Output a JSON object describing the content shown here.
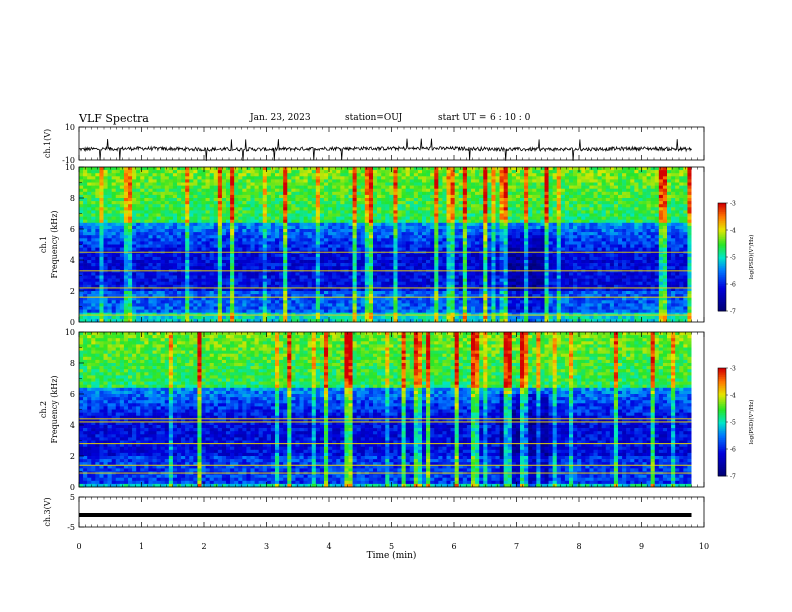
{
  "header": {
    "title": "VLF Spectra",
    "date": "Jan. 23, 2023",
    "station": "station=OUJ",
    "start_prefix": "start UT =",
    "start_time": "6 : 10 : 0"
  },
  "colors": {
    "trace": "#000000",
    "spectrogram_dark": "#00007f",
    "spectrogram_mid": "#00ff7f",
    "spectrogram_high": "#ff0000"
  },
  "chart_data": [
    {
      "type": "line",
      "id": "ch1-waveform",
      "ylabel": "ch.1(V)",
      "ylim": [
        -10,
        10
      ],
      "yticks": [
        -10,
        10
      ],
      "xlim": [
        0,
        10
      ],
      "x": [
        0,
        1,
        2,
        3,
        4,
        5,
        6,
        7,
        8,
        9,
        9.8
      ],
      "y": [
        -3.5,
        -3,
        -3.5,
        -3.5,
        -3,
        -3,
        -3,
        -3.5,
        -3.5,
        -3,
        -3.5
      ]
    },
    {
      "type": "heatmap",
      "id": "ch1-spectrogram",
      "ylabel_line1": "ch.1",
      "ylabel_line2": "Frequency (kHz)",
      "xlim": [
        0,
        10
      ],
      "ylim": [
        0,
        10
      ],
      "yticks": [
        0,
        2,
        4,
        6,
        8,
        10
      ],
      "colorbar": {
        "label": "log(PSD)(V²/Hz)",
        "range": [
          -7,
          -3
        ],
        "ticks": [
          "-7",
          "-6",
          "-5",
          "-4",
          "-3"
        ]
      }
    },
    {
      "type": "heatmap",
      "id": "ch2-spectrogram",
      "ylabel_line1": "ch.2",
      "ylabel_line2": "Frequency (kHz)",
      "xlim": [
        0,
        10
      ],
      "ylim": [
        0,
        10
      ],
      "yticks": [
        0,
        2,
        4,
        6,
        8,
        10
      ],
      "colorbar": {
        "label": "log(PSD)(V²/Hz)",
        "range": [
          -7,
          -3
        ],
        "ticks": [
          "-7",
          "-6",
          "-5",
          "-4",
          "-3"
        ]
      }
    },
    {
      "type": "line",
      "id": "ch3-waveform",
      "ylabel": "ch.3(V)",
      "ylim": [
        -5,
        5
      ],
      "yticks": [
        -5,
        5
      ],
      "xlim": [
        0,
        10
      ],
      "x": [
        0,
        9.8
      ],
      "y": [
        -1,
        -1
      ]
    }
  ],
  "time_axis": {
    "xlabel": "Time (min)",
    "ticks": [
      "0",
      "1",
      "2",
      "3",
      "4",
      "5",
      "6",
      "7",
      "8",
      "9",
      "10"
    ]
  }
}
